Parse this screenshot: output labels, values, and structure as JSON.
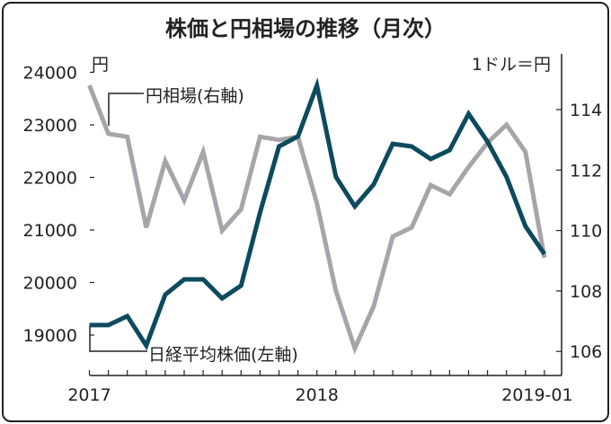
{
  "chart_data": {
    "type": "line",
    "title": "株価と円相場の推移（月次）",
    "left_unit": "円",
    "right_unit": "1ドル＝円",
    "x": [
      "2017-01",
      "2017-02",
      "2017-03",
      "2017-04",
      "2017-05",
      "2017-06",
      "2017-07",
      "2017-08",
      "2017-09",
      "2017-10",
      "2017-11",
      "2017-12",
      "2018-01",
      "2018-02",
      "2018-03",
      "2018-04",
      "2018-05",
      "2018-06",
      "2018-07",
      "2018-08",
      "2018-09",
      "2018-10",
      "2018-11",
      "2018-12",
      "2019-01"
    ],
    "x_tick_labels": [
      "2017",
      "2018",
      "2019-01"
    ],
    "left_axis": {
      "ylim": [
        18600,
        24000
      ],
      "ticks": [
        "24000",
        "23000",
        "22000",
        "21000",
        "20000",
        "19000"
      ]
    },
    "right_axis": {
      "ylim": [
        105.5,
        115
      ],
      "ticks": [
        "114",
        "112",
        "110",
        "108",
        "106"
      ]
    },
    "series": [
      {
        "name": "日経平均株価(左軸)",
        "axis": "left",
        "color": "#0d4a5e",
        "values": [
          19190,
          19190,
          19360,
          18800,
          19770,
          20060,
          20060,
          19700,
          19940,
          21330,
          22590,
          22780,
          23750,
          22010,
          21450,
          21870,
          22640,
          22590,
          22350,
          22520,
          23210,
          22680,
          22010,
          21070,
          20540
        ]
      },
      {
        "name": "円相場(右軸)",
        "axis": "right",
        "color": "#a6a5aa",
        "values": [
          114.8,
          113.2,
          113.1,
          110.1,
          112.3,
          111.0,
          112.6,
          110.0,
          110.7,
          113.1,
          113.0,
          113.1,
          110.9,
          108.0,
          106.1,
          107.5,
          109.8,
          110.1,
          111.5,
          111.2,
          112.1,
          112.9,
          113.5,
          112.6,
          109.1
        ]
      }
    ],
    "grid": false
  }
}
